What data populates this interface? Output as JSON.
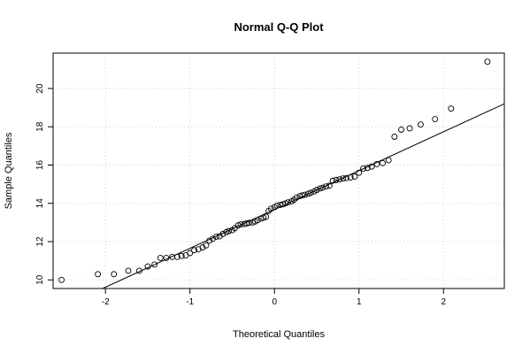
{
  "chart_data": {
    "type": "scatter",
    "title": "Normal Q-Q Plot",
    "xlabel": "Theoretical Quantiles",
    "ylabel": "Sample Quantiles",
    "xlim": [
      -2.62,
      2.72
    ],
    "ylim": [
      9.55,
      21.85
    ],
    "x_ticks": [
      -2,
      -1,
      0,
      1,
      2
    ],
    "y_ticks": [
      10,
      12,
      14,
      16,
      18,
      20
    ],
    "grid": true,
    "grid_style": "dotted",
    "point_style": "open-circle",
    "reference_line": {
      "slope": 2.03,
      "intercept": 13.68
    },
    "points": [
      [
        -2.52,
        10.0
      ],
      [
        -2.09,
        10.3
      ],
      [
        -1.9,
        10.3
      ],
      [
        -1.73,
        10.48
      ],
      [
        -1.6,
        10.48
      ],
      [
        -1.5,
        10.7
      ],
      [
        -1.42,
        10.8
      ],
      [
        -1.35,
        11.15
      ],
      [
        -1.28,
        11.15
      ],
      [
        -1.21,
        11.2
      ],
      [
        -1.15,
        11.2
      ],
      [
        -1.1,
        11.25
      ],
      [
        -1.05,
        11.28
      ],
      [
        -1.0,
        11.4
      ],
      [
        -0.95,
        11.55
      ],
      [
        -0.9,
        11.6
      ],
      [
        -0.85,
        11.7
      ],
      [
        -0.81,
        11.8
      ],
      [
        -0.77,
        12.05
      ],
      [
        -0.73,
        12.15
      ],
      [
        -0.69,
        12.25
      ],
      [
        -0.65,
        12.28
      ],
      [
        -0.61,
        12.4
      ],
      [
        -0.57,
        12.5
      ],
      [
        -0.54,
        12.55
      ],
      [
        -0.5,
        12.6
      ],
      [
        -0.47,
        12.7
      ],
      [
        -0.43,
        12.85
      ],
      [
        -0.4,
        12.9
      ],
      [
        -0.36,
        12.92
      ],
      [
        -0.33,
        12.95
      ],
      [
        -0.3,
        12.98
      ],
      [
        -0.26,
        13.0
      ],
      [
        -0.23,
        13.05
      ],
      [
        -0.2,
        13.12
      ],
      [
        -0.16,
        13.2
      ],
      [
        -0.13,
        13.25
      ],
      [
        -0.1,
        13.3
      ],
      [
        -0.07,
        13.6
      ],
      [
        -0.04,
        13.72
      ],
      [
        0.0,
        13.8
      ],
      [
        0.03,
        13.88
      ],
      [
        0.07,
        13.92
      ],
      [
        0.1,
        13.95
      ],
      [
        0.13,
        14.0
      ],
      [
        0.16,
        14.05
      ],
      [
        0.2,
        14.1
      ],
      [
        0.23,
        14.18
      ],
      [
        0.26,
        14.3
      ],
      [
        0.3,
        14.38
      ],
      [
        0.33,
        14.42
      ],
      [
        0.36,
        14.45
      ],
      [
        0.4,
        14.5
      ],
      [
        0.43,
        14.55
      ],
      [
        0.47,
        14.62
      ],
      [
        0.5,
        14.7
      ],
      [
        0.54,
        14.78
      ],
      [
        0.57,
        14.82
      ],
      [
        0.61,
        14.88
      ],
      [
        0.65,
        14.92
      ],
      [
        0.69,
        15.18
      ],
      [
        0.73,
        15.22
      ],
      [
        0.77,
        15.25
      ],
      [
        0.81,
        15.3
      ],
      [
        0.85,
        15.32
      ],
      [
        0.9,
        15.35
      ],
      [
        0.95,
        15.4
      ],
      [
        1.0,
        15.6
      ],
      [
        1.05,
        15.82
      ],
      [
        1.1,
        15.85
      ],
      [
        1.15,
        15.92
      ],
      [
        1.21,
        16.05
      ],
      [
        1.28,
        16.1
      ],
      [
        1.35,
        16.25
      ],
      [
        1.42,
        17.48
      ],
      [
        1.5,
        17.85
      ],
      [
        1.6,
        17.92
      ],
      [
        1.73,
        18.12
      ],
      [
        1.9,
        18.4
      ],
      [
        2.09,
        18.95
      ],
      [
        2.52,
        21.4
      ]
    ]
  }
}
